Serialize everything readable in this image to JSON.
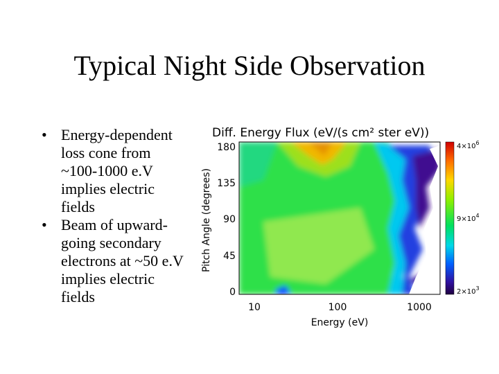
{
  "slide": {
    "title": "Typical Night Side Observation",
    "bullets": [
      {
        "lines": [
          "Energy-dependent",
          "loss cone from",
          "~100-1000 e.V",
          "implies electric",
          "fields"
        ]
      },
      {
        "lines": [
          "Beam of upward-",
          "going secondary",
          "electrons at ~50 e.V",
          "implies electric",
          "fields"
        ]
      }
    ],
    "figure": {
      "title": "Diff. Energy Flux (eV/(s cm² ster eV))",
      "y_label": "Pitch Angle (degrees)",
      "x_label": "Energy (eV)",
      "y_ticks": [
        "180",
        "135",
        "90",
        "45",
        "0"
      ],
      "x_ticks": [
        "10",
        "100",
        "1000"
      ],
      "colorbar_labels": [
        {
          "mantissa": "4×10",
          "exponent": "6"
        },
        {
          "mantissa": "9×10",
          "exponent": "4"
        },
        {
          "mantissa": "2×10",
          "exponent": "3"
        }
      ]
    }
  }
}
